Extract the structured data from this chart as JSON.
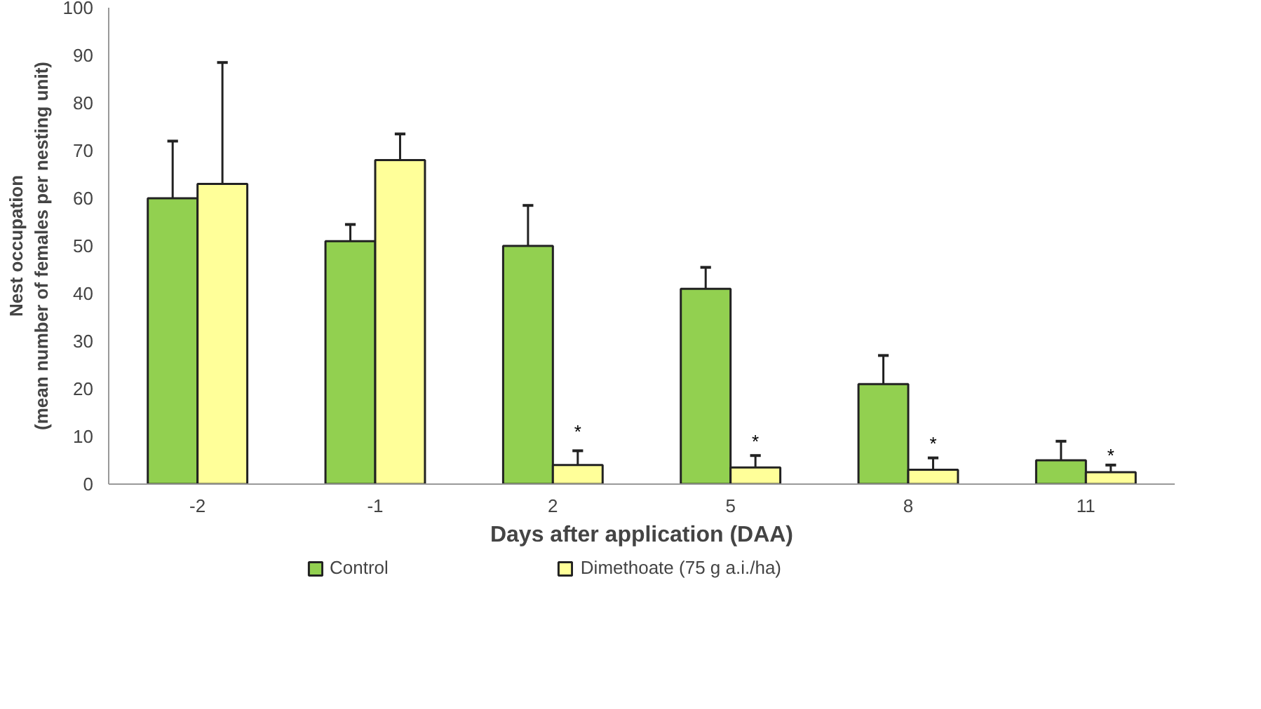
{
  "chart_data": {
    "type": "bar",
    "xlabel": "Days after application (DAA)",
    "ylabel": "Nest occupation\n(mean number of females per nesting unit)",
    "categories": [
      "-2",
      "-1",
      "2",
      "5",
      "8",
      "11"
    ],
    "series": [
      {
        "name": "Control",
        "color": "#92d050",
        "values": [
          60,
          51,
          50,
          41,
          21,
          5
        ],
        "errors": [
          [
            60,
            72
          ],
          [
            51,
            54.5
          ],
          [
            50,
            58.5
          ],
          [
            41,
            45.5
          ],
          [
            21,
            27
          ],
          [
            5,
            9
          ]
        ]
      },
      {
        "name": "Dimethoate (75 g a.i./ha)",
        "color": "#ffff99",
        "values": [
          63,
          68,
          4,
          3.5,
          3,
          2.5
        ],
        "errors": [
          [
            63,
            88.5
          ],
          [
            68,
            73.5
          ],
          [
            4,
            7
          ],
          [
            3.5,
            6
          ],
          [
            3,
            5.5
          ],
          [
            2.5,
            4
          ]
        ]
      }
    ],
    "annotations": [
      {
        "text": "*",
        "x": "2",
        "y": 11
      },
      {
        "text": "*",
        "x": "5",
        "y": 9
      },
      {
        "text": "*",
        "x": "8",
        "y": 8.5
      },
      {
        "text": "*",
        "x": "11",
        "y": 6
      }
    ],
    "ylim": [
      0,
      100
    ],
    "yticks": [
      0,
      10,
      20,
      30,
      40,
      50,
      60,
      70,
      80,
      90,
      100
    ],
    "grid": false,
    "legend": "bottom"
  }
}
